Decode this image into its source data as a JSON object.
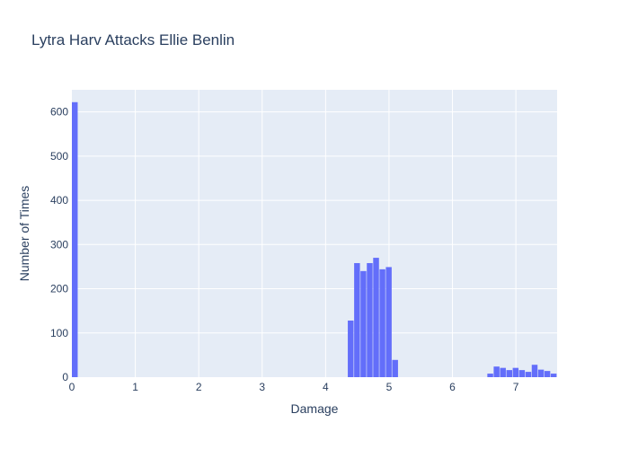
{
  "chart_data": {
    "type": "bar",
    "title": "Lytra Harv Attacks Ellie Benlin",
    "xlabel": "Damage",
    "ylabel": "Number of Times",
    "xlim": [
      0,
      7.65
    ],
    "ylim": [
      0,
      650
    ],
    "xticks": [
      0,
      1,
      2,
      3,
      4,
      5,
      6,
      7
    ],
    "yticks": [
      0,
      100,
      200,
      300,
      400,
      500,
      600
    ],
    "bin_width": 0.1,
    "bins": [
      {
        "x0": 0.0,
        "x1": 0.1,
        "count": 622
      },
      {
        "x0": 4.35,
        "x1": 4.45,
        "count": 128
      },
      {
        "x0": 4.45,
        "x1": 4.55,
        "count": 258
      },
      {
        "x0": 4.55,
        "x1": 4.65,
        "count": 240
      },
      {
        "x0": 4.65,
        "x1": 4.75,
        "count": 258
      },
      {
        "x0": 4.75,
        "x1": 4.85,
        "count": 270
      },
      {
        "x0": 4.85,
        "x1": 4.95,
        "count": 244
      },
      {
        "x0": 4.95,
        "x1": 5.05,
        "count": 249
      },
      {
        "x0": 5.05,
        "x1": 5.15,
        "count": 39
      },
      {
        "x0": 6.55,
        "x1": 6.65,
        "count": 8
      },
      {
        "x0": 6.65,
        "x1": 6.75,
        "count": 24
      },
      {
        "x0": 6.75,
        "x1": 6.85,
        "count": 21
      },
      {
        "x0": 6.85,
        "x1": 6.95,
        "count": 16
      },
      {
        "x0": 6.95,
        "x1": 7.05,
        "count": 21
      },
      {
        "x0": 7.05,
        "x1": 7.15,
        "count": 16
      },
      {
        "x0": 7.15,
        "x1": 7.25,
        "count": 12
      },
      {
        "x0": 7.25,
        "x1": 7.35,
        "count": 28
      },
      {
        "x0": 7.35,
        "x1": 7.45,
        "count": 17
      },
      {
        "x0": 7.45,
        "x1": 7.55,
        "count": 14
      },
      {
        "x0": 7.55,
        "x1": 7.65,
        "count": 8
      }
    ],
    "grid": true,
    "colors": {
      "bar": "#636efa",
      "plot_background": "#e5ecf6",
      "grid": "#ffffff",
      "text": "#2a3f5f"
    }
  }
}
